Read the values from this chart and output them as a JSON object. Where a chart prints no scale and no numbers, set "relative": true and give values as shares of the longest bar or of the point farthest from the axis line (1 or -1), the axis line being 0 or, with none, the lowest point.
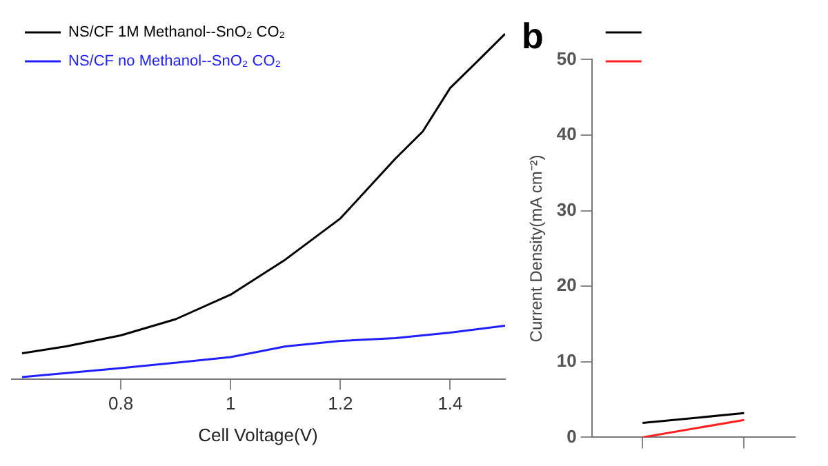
{
  "chart_data": [
    {
      "type": "line",
      "xlabel": "Cell Voltage(V)",
      "relative": true,
      "xlim": [
        0.6,
        1.5
      ],
      "xticks": [
        0.8,
        1.0,
        1.2,
        1.4
      ],
      "tick_labels": "x",
      "grid": false,
      "legend": "top left",
      "marker": "none",
      "line_style": "solid",
      "series": [
        {
          "name": "NS/CF 1M Methanol--SnO₂ CO₂",
          "color": "#000000",
          "x": [
            0.62,
            0.7,
            0.8,
            0.9,
            1.0,
            1.1,
            1.2,
            1.3,
            1.35,
            1.4,
            1.45,
            1.5
          ],
          "values": [
            0.074,
            0.094,
            0.126,
            0.173,
            0.244,
            0.346,
            0.465,
            0.638,
            0.717,
            0.843,
            0.921,
            1.0
          ]
        },
        {
          "name": "NS/CF no Methanol--SnO₂ CO₂",
          "color": "#2020ff",
          "x": [
            0.62,
            0.8,
            1.0,
            1.1,
            1.2,
            1.3,
            1.4,
            1.5
          ],
          "values": [
            0.005,
            0.031,
            0.063,
            0.094,
            0.11,
            0.118,
            0.134,
            0.154
          ]
        }
      ]
    },
    {
      "type": "line",
      "title": "b",
      "ylabel": "Current Density(mA cm⁻²)",
      "categories": [
        null,
        null
      ],
      "ylim": [
        0,
        50
      ],
      "yticks": [
        0,
        10,
        20,
        30,
        40,
        50
      ],
      "tick_labels": "y",
      "grid": false,
      "legend": "top left",
      "marker": "none",
      "line_style": "solid",
      "series": [
        {
          "color": "#000000",
          "values": [
            1.9,
            3.2
          ]
        },
        {
          "color": "#ff2020",
          "values": [
            0,
            2.3
          ]
        }
      ]
    }
  ]
}
